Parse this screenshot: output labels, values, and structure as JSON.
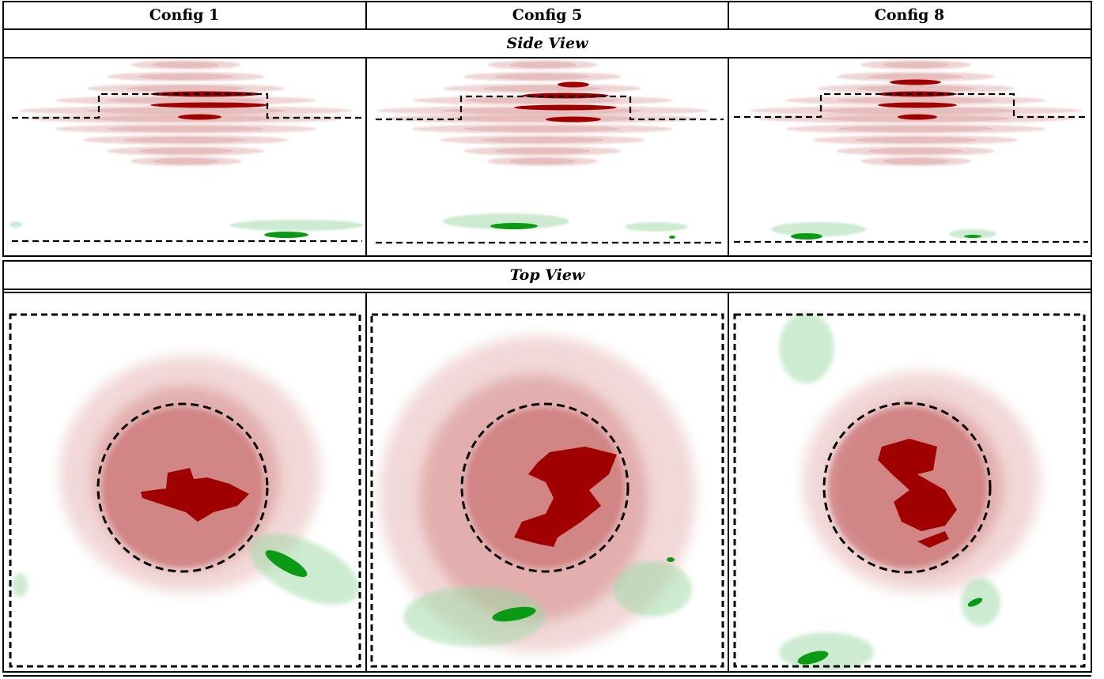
{
  "header": {
    "columns": [
      "Config 1",
      "Config 5",
      "Config 8"
    ]
  },
  "side_view": {
    "title": "Side View"
  },
  "top_view": {
    "title": "Top View"
  }
}
